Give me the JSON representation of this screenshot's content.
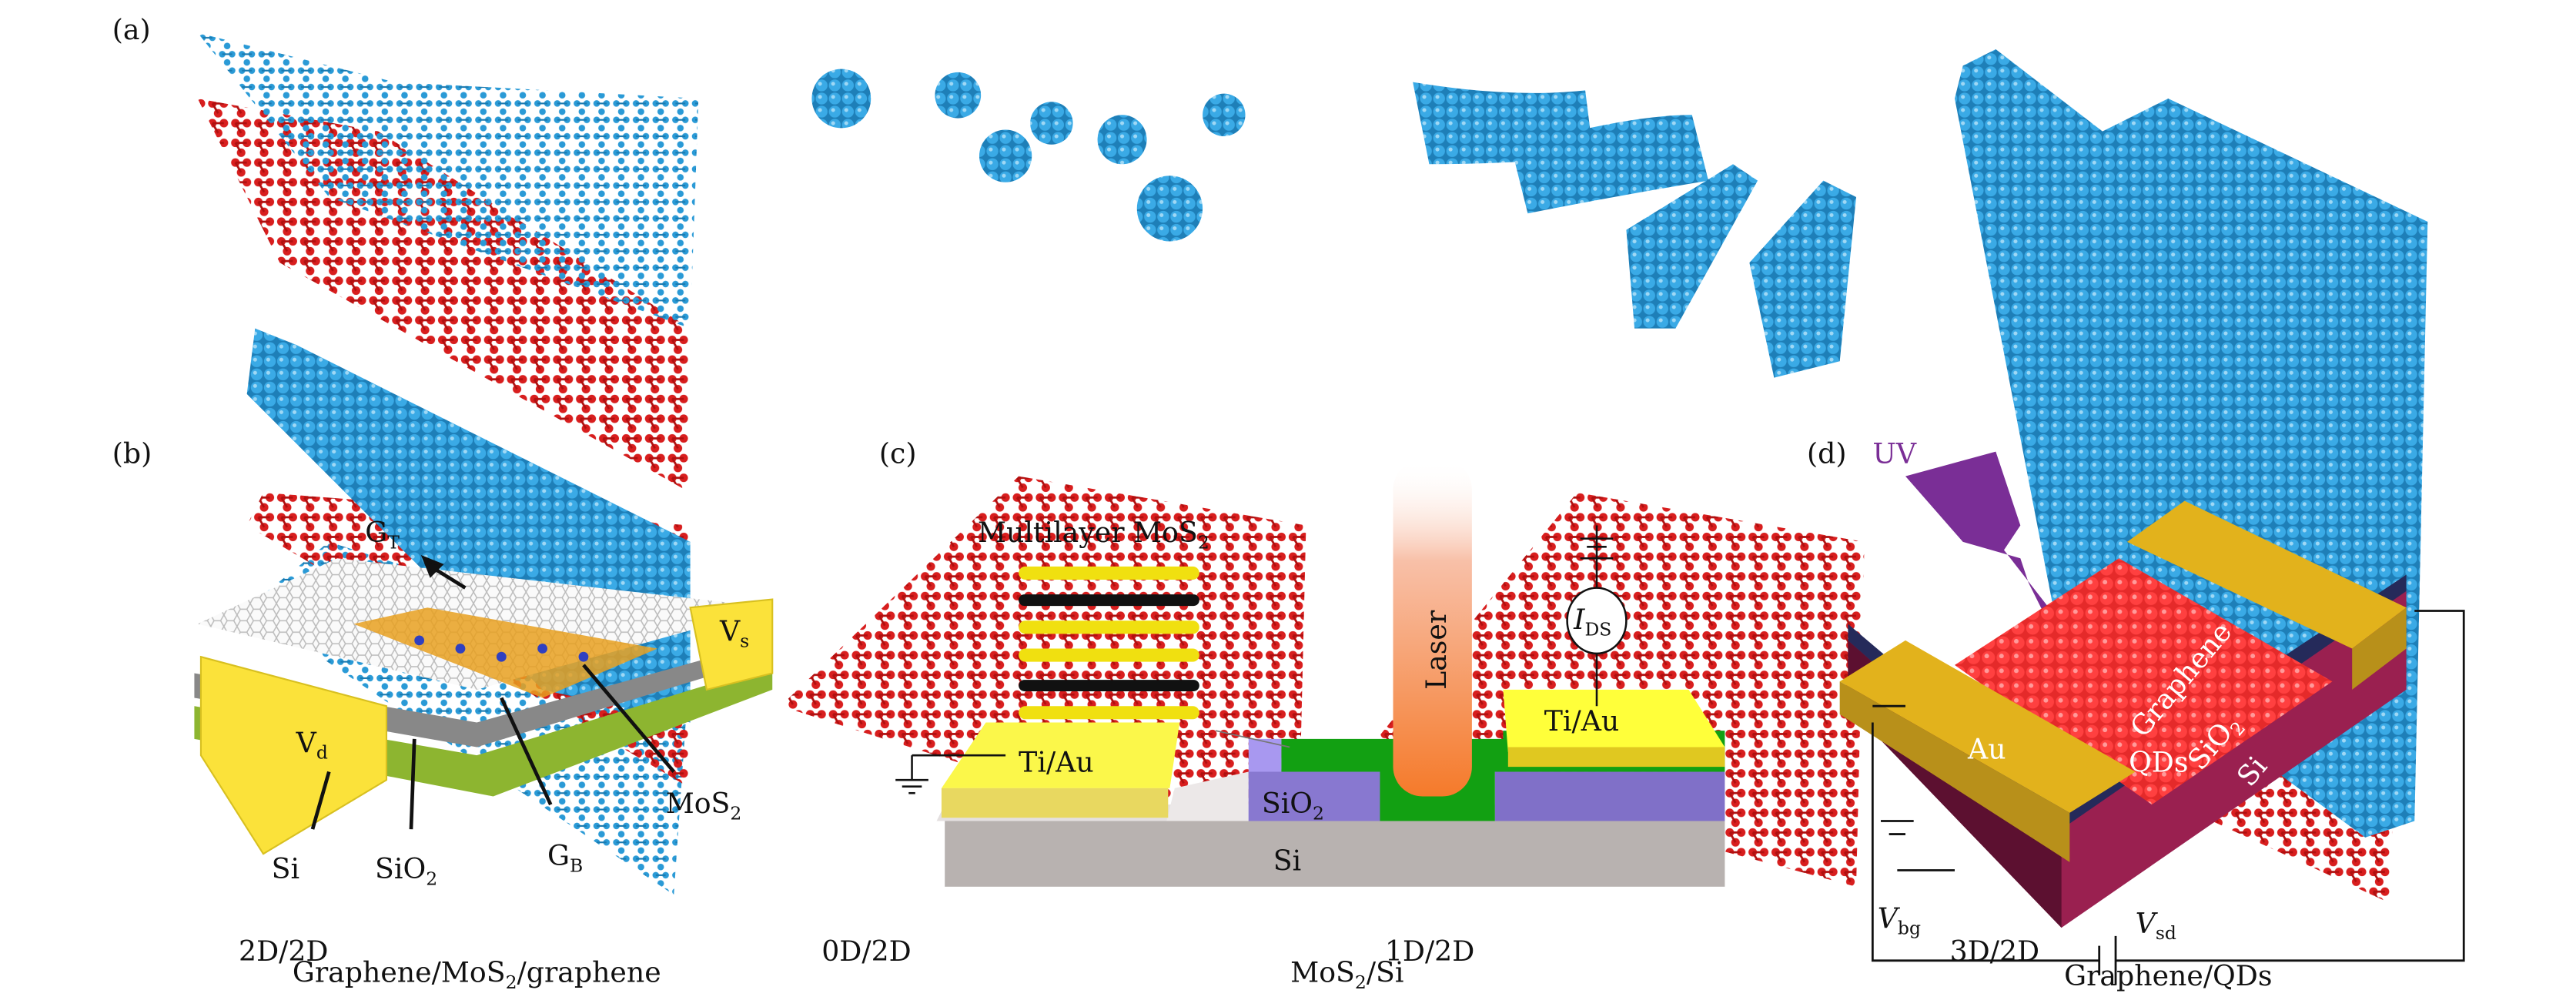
{
  "panel_a": {
    "label": "(a)",
    "captions": [
      "2D/2D",
      "0D/2D",
      "1D/2D",
      "3D/2D"
    ]
  },
  "panel_b": {
    "label": "(b)",
    "g_top": {
      "main": "G",
      "sub": "T"
    },
    "v_drain": {
      "main": "V",
      "sub": "d"
    },
    "v_source": {
      "main": "V",
      "sub": "s"
    },
    "mos2": {
      "main": "MoS",
      "sub": "2"
    },
    "g_bottom": {
      "main": "G",
      "sub": "B"
    },
    "si": "Si",
    "sio2": {
      "main": "SiO",
      "sub": "2"
    },
    "caption": {
      "pre": "Graphene/MoS",
      "sub": "2",
      "post": "/graphene"
    }
  },
  "panel_c": {
    "label": "(c)",
    "multilayer": {
      "main": "Multilayer MoS",
      "sub": "2"
    },
    "laser": "Laser",
    "ids": {
      "main": "I",
      "sub": "DS"
    },
    "tiau_left": "Ti/Au",
    "tiau_right": "Ti/Au",
    "sio2": {
      "main": "SiO",
      "sub": "2"
    },
    "si": "Si",
    "caption": {
      "pre": "MoS",
      "sub": "2",
      "post": "/Si"
    }
  },
  "panel_d": {
    "label": "(d)",
    "uv": "UV",
    "qds": "QDs",
    "graphene": "Graphene",
    "sio2": {
      "main": "SiO",
      "sub": "2"
    },
    "si": "Si",
    "au": "Au",
    "vbg": {
      "main": "V",
      "sub": "bg"
    },
    "vsd": {
      "main": "V",
      "sub": "sd"
    },
    "caption": "Graphene/QDs"
  },
  "colors": {
    "atom_red": "#d81e1e",
    "atom_blue": "#2a9ad6",
    "uv_purple": "#7a2e96",
    "gold": "#e2b21c",
    "si_magenta": "#9a2050",
    "sio2_navy": "#252a5a",
    "laser_orange": "#f58a3a",
    "green_mos2": "#12a012",
    "sio2_lavender": "#8878d0",
    "si_gray": "#b8b2b0",
    "ti_au_yellow": "#ffff3a"
  }
}
